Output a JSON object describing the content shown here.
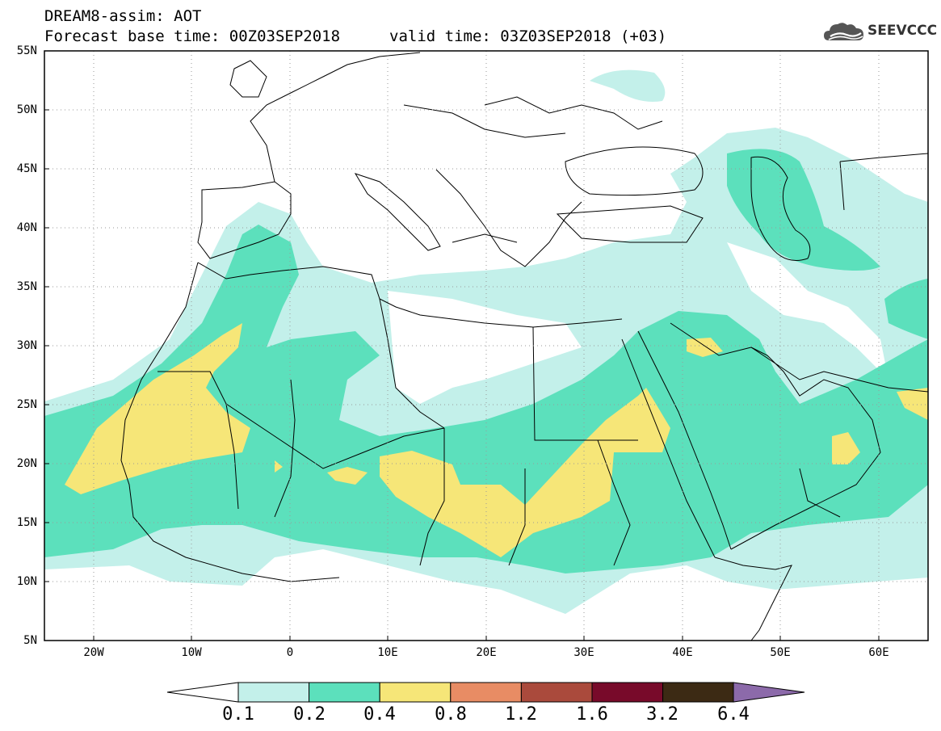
{
  "header": {
    "line1": "DREAM8-assim: AOT",
    "line2": "Forecast base time: 00Z03SEP2018",
    "valid": "valid time: 03Z03SEP2018 (+03)",
    "logo_text": "SEEVCCC",
    "logo_icon": "cloud-icon"
  },
  "map": {
    "lat_labels": [
      "55N",
      "50N",
      "45N",
      "40N",
      "35N",
      "30N",
      "25N",
      "20N",
      "15N",
      "10N",
      "5N"
    ],
    "lon_labels": [
      "20W",
      "10W",
      "0",
      "10E",
      "20E",
      "30E",
      "40E",
      "50E",
      "60E"
    ],
    "lat_range": [
      5,
      55
    ],
    "lon_range": [
      -25,
      65
    ],
    "grid": "dotted"
  },
  "legend": {
    "labels": [
      "0.1",
      "0.2",
      "0.4",
      "0.8",
      "1.2",
      "1.6",
      "3.2",
      "6.4"
    ],
    "colors": [
      "#c3f0ea",
      "#5ce0bc",
      "#f6e678",
      "#e88c64",
      "#aa4a3c",
      "#780a2a",
      "#3c2a14",
      "#8c6aaa"
    ]
  }
}
